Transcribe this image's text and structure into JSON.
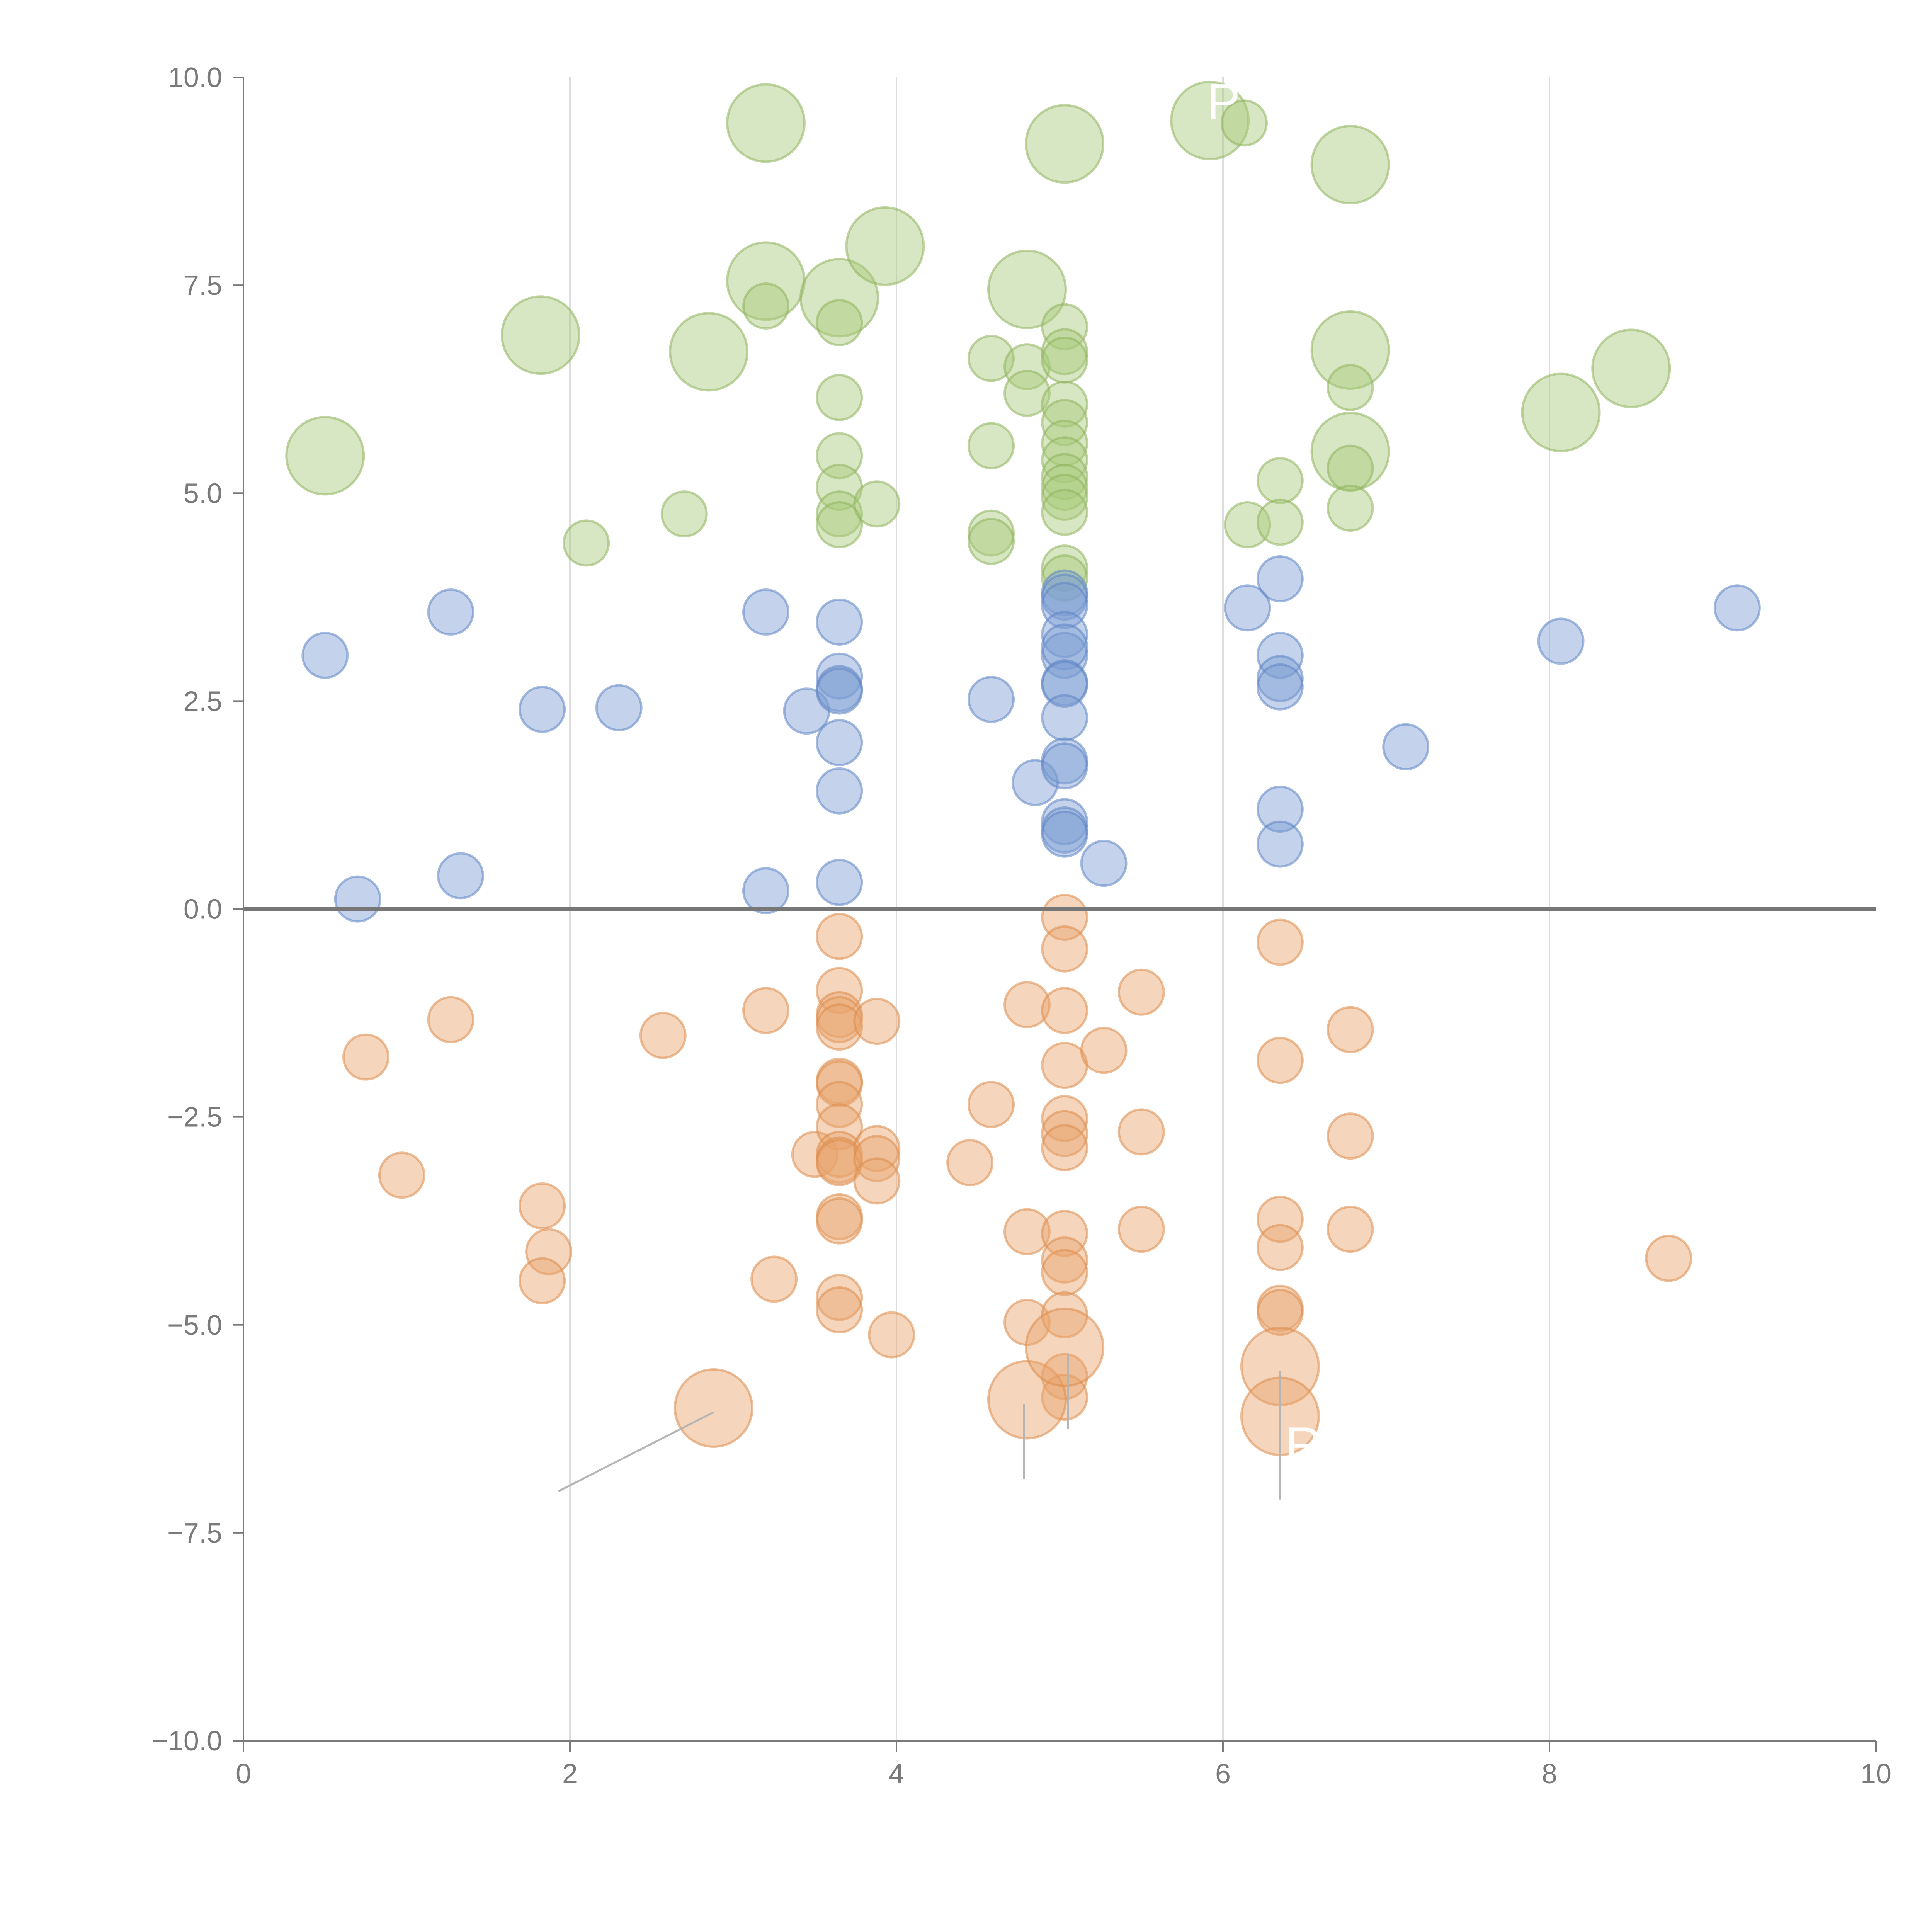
{
  "chart_data": {
    "type": "scatter",
    "title": "",
    "xlabel": "",
    "ylabel": "",
    "xlim": [
      0,
      10
    ],
    "ylim": [
      -10,
      10
    ],
    "x_ticks": [
      "0",
      "2",
      "4",
      "6",
      "8",
      "10"
    ],
    "y_ticks": [
      "10.0",
      "7.5",
      "5.0",
      "2.5",
      "0.0",
      "−2.5",
      "−5.0",
      "−7.5",
      "−10.0"
    ],
    "vertical_gridlines_at": [
      2,
      4,
      6,
      8
    ],
    "baseline_y": 0,
    "series": [
      {
        "name": "green",
        "color": "#a8c97a",
        "stroke": "#8fb35c",
        "points": [
          [
            0.5,
            5.45,
            2
          ],
          [
            1.82,
            6.9,
            2
          ],
          [
            2.85,
            6.7,
            2
          ],
          [
            3.2,
            9.45,
            2
          ],
          [
            3.2,
            7.55,
            2
          ],
          [
            3.65,
            7.35,
            2
          ],
          [
            3.93,
            7.97,
            2
          ],
          [
            4.8,
            7.45,
            2
          ],
          [
            5.03,
            9.2,
            2
          ],
          [
            5.92,
            9.48,
            2
          ],
          [
            6.78,
            8.95,
            2
          ],
          [
            6.78,
            6.72,
            2
          ],
          [
            6.78,
            5.5,
            2
          ],
          [
            8.07,
            5.97,
            2
          ],
          [
            8.5,
            6.5,
            2
          ],
          [
            2.1,
            4.4,
            1
          ],
          [
            2.7,
            4.75,
            1
          ],
          [
            3.2,
            7.25,
            1
          ],
          [
            3.65,
            7.05,
            1
          ],
          [
            3.65,
            6.15,
            1
          ],
          [
            3.65,
            5.45,
            1
          ],
          [
            3.65,
            5.07,
            1
          ],
          [
            3.65,
            4.75,
            1
          ],
          [
            3.65,
            4.62,
            1
          ],
          [
            3.88,
            4.87,
            1
          ],
          [
            4.58,
            6.62,
            1
          ],
          [
            4.58,
            5.57,
            1
          ],
          [
            4.58,
            4.52,
            1
          ],
          [
            4.58,
            4.42,
            1
          ],
          [
            4.8,
            6.52,
            1
          ],
          [
            4.8,
            6.2,
            1
          ],
          [
            5.03,
            7.0,
            1
          ],
          [
            5.03,
            6.7,
            1
          ],
          [
            5.03,
            6.6,
            1
          ],
          [
            5.03,
            6.07,
            1
          ],
          [
            5.03,
            5.85,
            1
          ],
          [
            5.03,
            5.6,
            1
          ],
          [
            5.03,
            5.4,
            1
          ],
          [
            5.03,
            5.2,
            1
          ],
          [
            5.03,
            5.07,
            1
          ],
          [
            5.03,
            4.95,
            1
          ],
          [
            5.03,
            4.77,
            1
          ],
          [
            5.03,
            4.1,
            1
          ],
          [
            5.03,
            3.98,
            1
          ],
          [
            6.13,
            9.45,
            1
          ],
          [
            6.15,
            4.62,
            1
          ],
          [
            6.35,
            5.15,
            1
          ],
          [
            6.35,
            4.65,
            1
          ],
          [
            6.78,
            6.27,
            1
          ],
          [
            6.78,
            5.3,
            1
          ],
          [
            6.78,
            4.82,
            1
          ]
        ]
      },
      {
        "name": "blue",
        "color": "#7d9ed3",
        "stroke": "#5f85c4",
        "points": [
          [
            0.5,
            3.05,
            1
          ],
          [
            0.7,
            0.12,
            1
          ],
          [
            1.27,
            3.57,
            1
          ],
          [
            1.33,
            0.4,
            1
          ],
          [
            1.83,
            2.4,
            1
          ],
          [
            2.3,
            2.42,
            1
          ],
          [
            3.2,
            3.57,
            1
          ],
          [
            3.2,
            0.22,
            1
          ],
          [
            3.45,
            2.38,
            1
          ],
          [
            3.65,
            3.45,
            1
          ],
          [
            3.65,
            2.8,
            1
          ],
          [
            3.65,
            2.65,
            1
          ],
          [
            3.65,
            2.62,
            1
          ],
          [
            3.65,
            2.0,
            1
          ],
          [
            3.65,
            1.42,
            1
          ],
          [
            3.65,
            0.32,
            1
          ],
          [
            4.58,
            2.52,
            1
          ],
          [
            4.85,
            1.52,
            1
          ],
          [
            5.03,
            3.8,
            1
          ],
          [
            5.03,
            3.75,
            1
          ],
          [
            5.03,
            3.65,
            1
          ],
          [
            5.03,
            3.3,
            1
          ],
          [
            5.03,
            3.05,
            1
          ],
          [
            5.03,
            3.15,
            1
          ],
          [
            5.03,
            2.72,
            1
          ],
          [
            5.03,
            2.7,
            1
          ],
          [
            5.03,
            2.3,
            1
          ],
          [
            5.03,
            1.78,
            1
          ],
          [
            5.03,
            1.72,
            1
          ],
          [
            5.03,
            1.05,
            1
          ],
          [
            5.03,
            0.95,
            1
          ],
          [
            5.03,
            0.9,
            1
          ],
          [
            5.27,
            0.55,
            1
          ],
          [
            6.15,
            3.62,
            1
          ],
          [
            6.35,
            3.97,
            1
          ],
          [
            6.35,
            3.05,
            1
          ],
          [
            6.35,
            2.77,
            1
          ],
          [
            6.35,
            2.67,
            1
          ],
          [
            6.35,
            1.2,
            1
          ],
          [
            6.35,
            0.78,
            1
          ],
          [
            7.12,
            1.95,
            1
          ],
          [
            8.07,
            3.22,
            1
          ],
          [
            9.15,
            3.62,
            1
          ]
        ]
      },
      {
        "name": "orange",
        "color": "#e8a46c",
        "stroke": "#dd8c4c",
        "points": [
          [
            0.75,
            -1.78,
            1
          ],
          [
            0.97,
            -3.2,
            1
          ],
          [
            1.27,
            -1.33,
            1
          ],
          [
            1.83,
            -3.57,
            1
          ],
          [
            1.87,
            -4.12,
            1
          ],
          [
            1.83,
            -4.47,
            1
          ],
          [
            2.57,
            -1.52,
            1
          ],
          [
            3.2,
            -1.22,
            1
          ],
          [
            3.25,
            -4.45,
            1
          ],
          [
            3.5,
            -2.95,
            1
          ],
          [
            3.65,
            -0.33,
            1
          ],
          [
            3.65,
            -0.98,
            1
          ],
          [
            3.65,
            -1.27,
            1
          ],
          [
            3.65,
            -1.33,
            1
          ],
          [
            3.65,
            -1.42,
            1
          ],
          [
            3.65,
            -2.07,
            1
          ],
          [
            3.65,
            -2.1,
            1
          ],
          [
            3.65,
            -2.35,
            1
          ],
          [
            3.65,
            -2.62,
            1
          ],
          [
            3.65,
            -2.95,
            1
          ],
          [
            3.65,
            -3.02,
            1
          ],
          [
            3.65,
            -3.05,
            1
          ],
          [
            3.65,
            -3.7,
            1
          ],
          [
            3.65,
            -3.75,
            1
          ],
          [
            3.65,
            -4.67,
            1
          ],
          [
            3.65,
            -4.82,
            1
          ],
          [
            3.88,
            -1.35,
            1
          ],
          [
            3.88,
            -2.88,
            1
          ],
          [
            3.88,
            -3.0,
            1
          ],
          [
            3.88,
            -3.27,
            1
          ],
          [
            3.97,
            -5.12,
            1
          ],
          [
            4.45,
            -3.05,
            1
          ],
          [
            4.58,
            -2.35,
            1
          ],
          [
            4.8,
            -1.15,
            1
          ],
          [
            4.8,
            -3.88,
            1
          ],
          [
            4.8,
            -4.97,
            1
          ],
          [
            5.03,
            -0.1,
            1
          ],
          [
            5.03,
            -0.48,
            1
          ],
          [
            5.03,
            -1.22,
            1
          ],
          [
            5.03,
            -1.88,
            1
          ],
          [
            5.03,
            -2.52,
            1
          ],
          [
            5.03,
            -2.7,
            1
          ],
          [
            5.03,
            -2.87,
            1
          ],
          [
            5.03,
            -3.9,
            1
          ],
          [
            5.03,
            -4.22,
            1
          ],
          [
            5.03,
            -4.37,
            1
          ],
          [
            5.03,
            -4.88,
            1
          ],
          [
            5.03,
            -5.62,
            1
          ],
          [
            5.03,
            -5.87,
            1
          ],
          [
            5.27,
            -1.7,
            1
          ],
          [
            5.5,
            -1.0,
            1
          ],
          [
            5.5,
            -2.68,
            1
          ],
          [
            5.5,
            -3.85,
            1
          ],
          [
            6.35,
            -0.4,
            1
          ],
          [
            6.35,
            -1.82,
            1
          ],
          [
            6.35,
            -3.73,
            1
          ],
          [
            6.35,
            -4.07,
            1
          ],
          [
            6.35,
            -4.8,
            1
          ],
          [
            6.35,
            -4.85,
            1
          ],
          [
            6.78,
            -1.45,
            1
          ],
          [
            6.78,
            -2.73,
            1
          ],
          [
            6.78,
            -3.85,
            1
          ],
          [
            8.73,
            -4.2,
            1
          ],
          [
            2.88,
            -6.0,
            2
          ],
          [
            4.8,
            -5.9,
            2
          ],
          [
            5.03,
            -5.27,
            2
          ],
          [
            6.35,
            -5.5,
            2
          ],
          [
            6.35,
            -6.1,
            2
          ]
        ]
      }
    ],
    "annotations": [
      {
        "text": "R",
        "x": 6.38,
        "y": -6.65,
        "from": [
          6.35,
          -5.55
        ],
        "to": [
          6.35,
          -7.1
        ]
      },
      {
        "text": "",
        "x": 1.9,
        "y": -7.0,
        "from": [
          2.88,
          -6.05
        ],
        "to": [
          1.93,
          -7.0
        ]
      },
      {
        "text": "",
        "x": 4.78,
        "y": -6.85,
        "from": [
          4.78,
          -5.95
        ],
        "to": [
          4.78,
          -6.85
        ]
      },
      {
        "text": "",
        "x": 5.05,
        "y": -6.2,
        "from": [
          5.05,
          -5.35
        ],
        "to": [
          5.05,
          -6.25
        ]
      },
      {
        "text": "P",
        "x": 5.9,
        "y": 9.5,
        "from": null,
        "to": null
      }
    ]
  }
}
